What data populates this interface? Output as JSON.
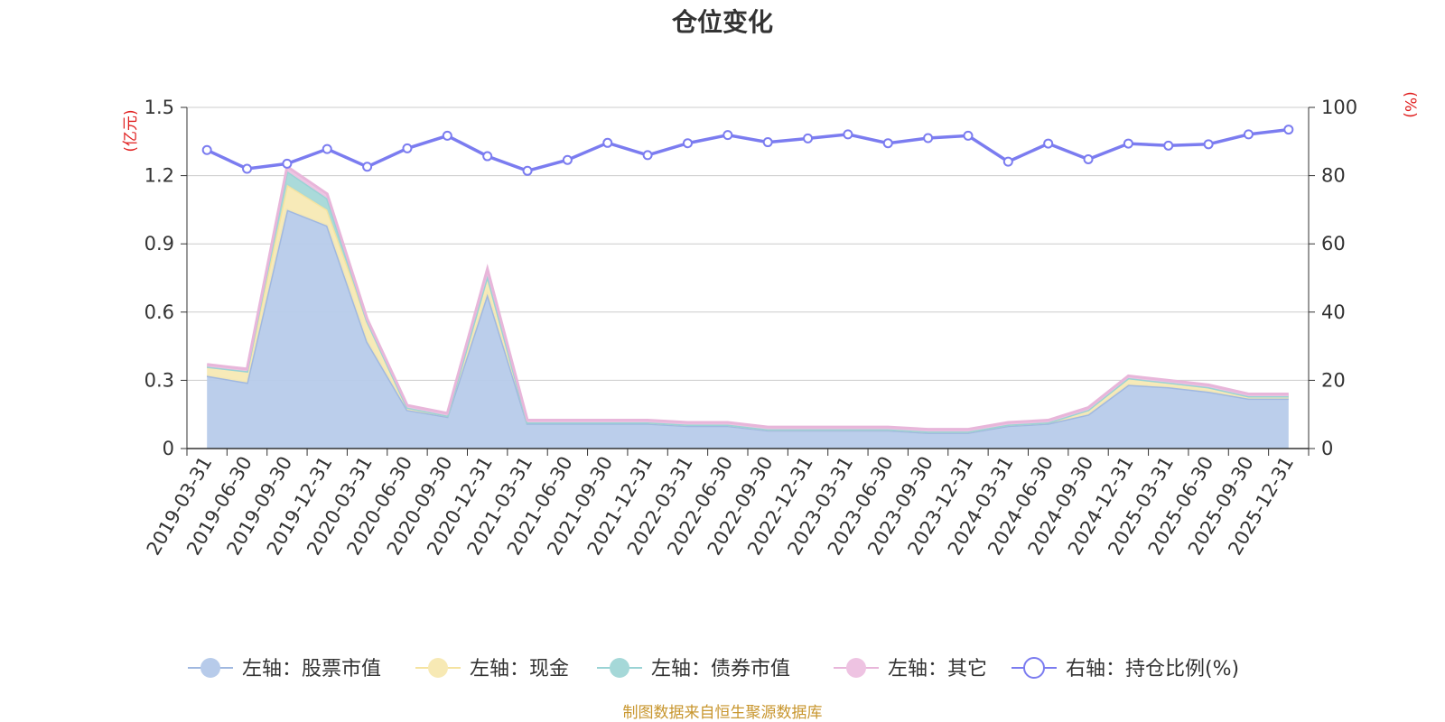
{
  "chart_data": {
    "type": "area",
    "title": "仓位变化",
    "source_note": "制图数据来自恒生聚源数据库",
    "left_axis": {
      "unit": "(亿元)",
      "ylim": [
        0,
        1.5
      ],
      "ticks": [
        "0",
        "0.3",
        "0.6",
        "0.9",
        "1.2",
        "1.5"
      ]
    },
    "right_axis": {
      "unit": "(%)",
      "ylim": [
        0,
        100
      ],
      "ticks": [
        "0",
        "20",
        "40",
        "60",
        "80",
        "100"
      ]
    },
    "categories": [
      "2019-03-31",
      "2019-06-30",
      "2019-09-30",
      "2019-12-31",
      "2020-03-31",
      "2020-06-30",
      "2020-09-30",
      "2020-12-31",
      "2021-03-31",
      "2021-06-30",
      "2021-09-30",
      "2021-12-31",
      "2022-03-31",
      "2022-06-30",
      "2022-09-30",
      "2022-12-31",
      "2023-03-31",
      "2023-06-30",
      "2023-09-30",
      "2023-12-31",
      "2024-03-31",
      "2024-06-30",
      "2024-09-30",
      "2024-12-31",
      "2025-03-31",
      "2025-06-30",
      "2025-09-30",
      "2025-12-31"
    ],
    "grid": true,
    "legend_position": "bottom-center",
    "series": [
      {
        "name": "左轴：股票市值",
        "axis": "left",
        "stack": true,
        "color": "#a0b8e0",
        "fill": "#b7cbea",
        "values": [
          0.32,
          0.29,
          1.05,
          0.98,
          0.47,
          0.17,
          0.14,
          0.68,
          0.11,
          0.11,
          0.11,
          0.11,
          0.1,
          0.1,
          0.08,
          0.08,
          0.08,
          0.08,
          0.07,
          0.07,
          0.1,
          0.11,
          0.15,
          0.28,
          0.27,
          0.25,
          0.22,
          0.22
        ]
      },
      {
        "name": "左轴：现金",
        "axis": "left",
        "stack": true,
        "color": "#f5e3a0",
        "fill": "#f7e9b4",
        "values": [
          0.04,
          0.05,
          0.11,
          0.07,
          0.09,
          0.01,
          0.005,
          0.08,
          0.005,
          0.005,
          0.005,
          0.005,
          0.005,
          0.005,
          0.005,
          0.005,
          0.005,
          0.005,
          0.005,
          0.005,
          0.005,
          0.005,
          0.02,
          0.03,
          0.02,
          0.02,
          0.01,
          0.01
        ]
      },
      {
        "name": "左轴：债券市值",
        "axis": "left",
        "stack": true,
        "color": "#9ad3d5",
        "fill": "#a5d8d8",
        "values": [
          0,
          0,
          0.06,
          0.05,
          0,
          0,
          0,
          0,
          0,
          0,
          0,
          0,
          0,
          0,
          0,
          0,
          0,
          0,
          0,
          0,
          0,
          0,
          0,
          0,
          0,
          0,
          0,
          0
        ]
      },
      {
        "name": "左轴：其它",
        "axis": "left",
        "stack": true,
        "color": "#e8b6da",
        "fill": "#eec3e2",
        "values": [
          0.01,
          0.01,
          0.02,
          0.02,
          0.01,
          0.01,
          0.01,
          0.03,
          0.01,
          0.01,
          0.01,
          0.01,
          0.01,
          0.01,
          0.01,
          0.01,
          0.01,
          0.01,
          0.01,
          0.01,
          0.01,
          0.01,
          0.01,
          0.01,
          0.01,
          0.01,
          0.01,
          0.01
        ]
      },
      {
        "name": "右轴：持仓比例(%)",
        "axis": "right",
        "type": "line",
        "color": "#7b7cf0",
        "values": [
          87.5,
          82.0,
          83.5,
          87.8,
          82.6,
          88.0,
          91.7,
          85.7,
          81.4,
          84.6,
          89.6,
          86.0,
          89.5,
          91.9,
          89.8,
          90.9,
          92.1,
          89.5,
          91.0,
          91.7,
          84.1,
          89.4,
          84.8,
          89.4,
          88.8,
          89.2,
          92.1,
          93.5
        ]
      }
    ]
  }
}
